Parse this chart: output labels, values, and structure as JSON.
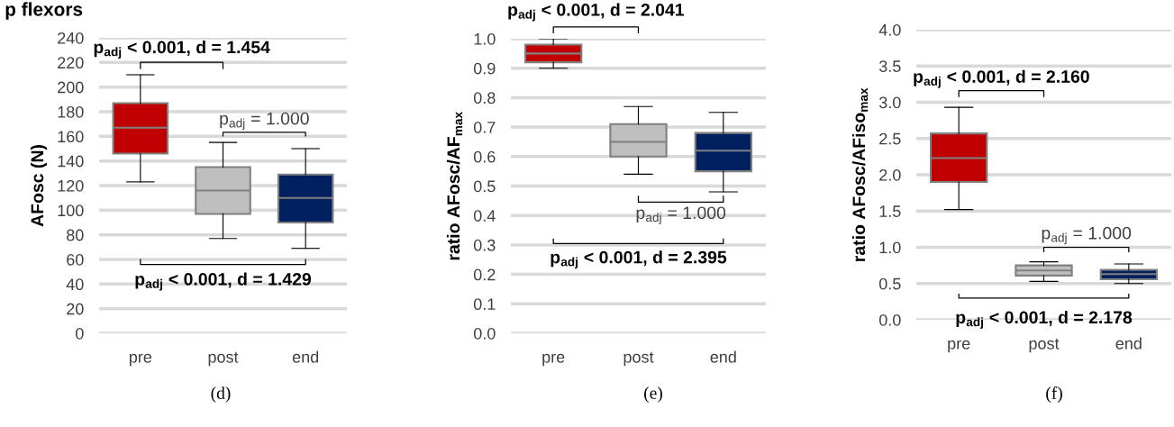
{
  "chart_data": [
    {
      "type": "box",
      "title": "p flexors",
      "ylabel": "AFosc (N)",
      "categories": [
        "pre",
        "post",
        "end"
      ],
      "colors": [
        "#c00000",
        "#bfbfbf",
        "#002060"
      ],
      "boxes": [
        {
          "low": 123,
          "q1": 146,
          "median": 167,
          "q3": 187,
          "high": 210
        },
        {
          "low": 77,
          "q1": 97,
          "median": 116,
          "q3": 135,
          "high": 155
        },
        {
          "low": 69,
          "q1": 90,
          "median": 110,
          "q3": 129,
          "high": 150
        }
      ],
      "ylim": [
        0,
        240
      ],
      "yticks": [
        0,
        20,
        40,
        60,
        80,
        100,
        120,
        140,
        160,
        180,
        200,
        220,
        240
      ],
      "grid": "y",
      "annotations": [
        "p$_{adj}$ < 0.001, d = 1.454",
        "p$_{adj}$ = 1.000",
        "p$_{adj}$ < 0.001, d = 1.429",
        "(d)"
      ]
    },
    {
      "type": "box",
      "ylabel": "ratio AFosc/AF$_{max}$",
      "categories": [
        "pre",
        "post",
        "end"
      ],
      "colors": [
        "#c00000",
        "#bfbfbf",
        "#002060"
      ],
      "boxes": [
        {
          "low": 0.9,
          "q1": 0.92,
          "median": 0.95,
          "q3": 0.98,
          "high": 1.0
        },
        {
          "low": 0.54,
          "q1": 0.6,
          "median": 0.65,
          "q3": 0.71,
          "high": 0.77
        },
        {
          "low": 0.48,
          "q1": 0.55,
          "median": 0.62,
          "q3": 0.68,
          "high": 0.75
        }
      ],
      "ylim": [
        0,
        1.0
      ],
      "yticks": [
        {
          "value": 0,
          "label": "0.0"
        },
        0.1,
        0.2,
        0.3,
        0.4,
        0.5,
        0.6,
        0.7,
        0.8,
        0.9,
        {
          "value": 1,
          "label": "1.0"
        }
      ],
      "grid": "y",
      "annotations": [
        "p$_{adj}$ < 0.001, d = 2.041",
        "p$_{adj}$ = 1.000",
        "p$_{adj}$ < 0.001, d = 2.395",
        "(e)"
      ]
    },
    {
      "type": "box",
      "ylabel": "ratio AFosc/AFiso$_{max}$",
      "categories": [
        "pre",
        "post",
        "end"
      ],
      "colors": [
        "#c00000",
        "#bfbfbf",
        "#002060"
      ],
      "boxes": [
        {
          "low": 1.52,
          "q1": 1.9,
          "median": 2.23,
          "q3": 2.57,
          "high": 2.93
        },
        {
          "low": 0.53,
          "q1": 0.61,
          "median": 0.68,
          "q3": 0.75,
          "high": 0.8
        },
        {
          "low": 0.5,
          "q1": 0.56,
          "median": 0.63,
          "q3": 0.69,
          "high": 0.77
        }
      ],
      "ylim": [
        0,
        4.0
      ],
      "yticks": [
        {
          "value": 0,
          "label": "0.0"
        },
        0.5,
        {
          "value": 1,
          "label": "1.0"
        },
        1.5,
        {
          "value": 2,
          "label": "2.0"
        },
        2.5,
        {
          "value": 3,
          "label": "3.0"
        },
        3.5,
        {
          "value": 4,
          "label": "4.0"
        }
      ],
      "grid": "y",
      "annotations": [
        "p$_{adj}$ < 0.001, d = 2.160",
        "p$_{adj}$ = 1.000",
        "p$_{adj}$ < 0.001, d = 2.178",
        "(f)"
      ]
    }
  ]
}
